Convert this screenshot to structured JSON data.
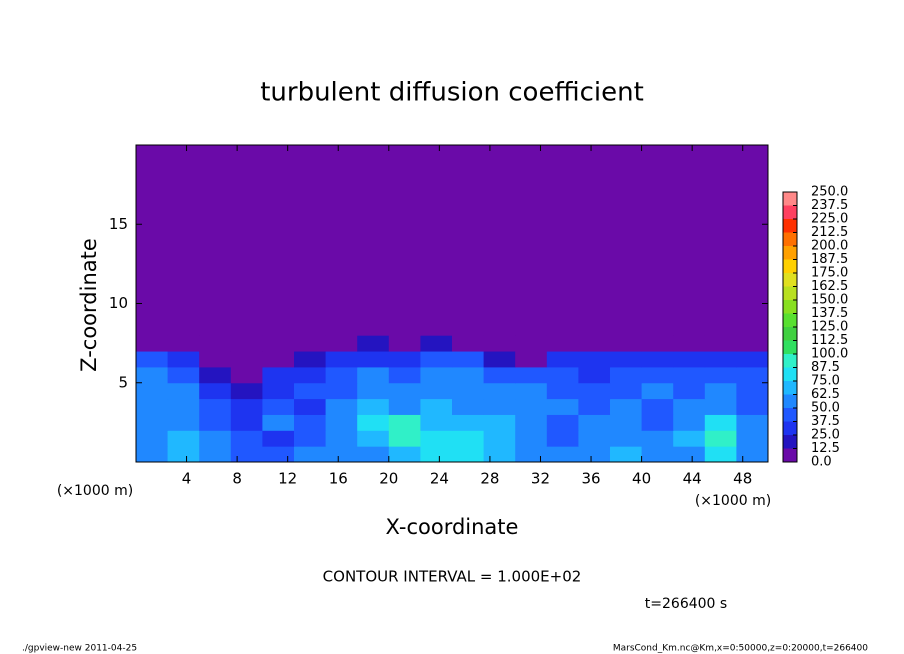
{
  "chart_data": {
    "type": "heatmap",
    "title": "turbulent diffusion coefficient",
    "x_label": "X-coordinate",
    "y_label": "Z-coordinate",
    "x_unit": "(×1000 m)",
    "y_unit": "(×1000 m)",
    "contour_note": "CONTOUR INTERVAL = 1.000E+02",
    "time_note": "t=266400 s",
    "footer_left": "./gpview-new  2011-04-25",
    "footer_right": "MarsCond_Km.nc@Km,x=0:50000,z=0:20000,t=266400",
    "xlim": [
      0,
      50
    ],
    "ylim": [
      0,
      20
    ],
    "xticks": [
      4,
      8,
      12,
      16,
      20,
      24,
      28,
      32,
      36,
      40,
      44,
      48
    ],
    "yticks": [
      5,
      10,
      15
    ],
    "x_edges": [
      0,
      2.5,
      5,
      7.5,
      10,
      12.5,
      15,
      17.5,
      20,
      22.5,
      25,
      27.5,
      30,
      32.5,
      35,
      37.5,
      40,
      42.5,
      45,
      47.5,
      50
    ],
    "z_edges": [
      0,
      1,
      2,
      3,
      4,
      5,
      6,
      7,
      8,
      20
    ],
    "values": [
      [
        60,
        70,
        55,
        45,
        40,
        50,
        55,
        60,
        70,
        75,
        80,
        70,
        60,
        50,
        60,
        70,
        55,
        60,
        80,
        60
      ],
      [
        55,
        65,
        50,
        40,
        35,
        45,
        60,
        70,
        90,
        75,
        75,
        70,
        55,
        45,
        55,
        60,
        50,
        65,
        90,
        60
      ],
      [
        55,
        60,
        45,
        30,
        60,
        40,
        55,
        75,
        90,
        70,
        65,
        65,
        50,
        45,
        50,
        55,
        45,
        55,
        85,
        50
      ],
      [
        60,
        55,
        40,
        25,
        40,
        35,
        50,
        70,
        60,
        65,
        60,
        60,
        55,
        50,
        45,
        50,
        45,
        50,
        60,
        45
      ],
      [
        55,
        50,
        30,
        20,
        35,
        40,
        45,
        60,
        55,
        60,
        55,
        60,
        50,
        45,
        40,
        45,
        50,
        45,
        50,
        40
      ],
      [
        50,
        45,
        20,
        10,
        25,
        35,
        40,
        50,
        45,
        50,
        55,
        45,
        40,
        40,
        35,
        40,
        45,
        40,
        45,
        40
      ],
      [
        45,
        30,
        5,
        5,
        10,
        20,
        35,
        30,
        35,
        45,
        40,
        15,
        10,
        30,
        25,
        25,
        35,
        30,
        30,
        30
      ],
      [
        0,
        0,
        0,
        0,
        0,
        0,
        0,
        20,
        0,
        20,
        0,
        0,
        0,
        0,
        0,
        0,
        0,
        0,
        0,
        0
      ],
      [
        0,
        0,
        0,
        0,
        0,
        0,
        0,
        0,
        0,
        0,
        0,
        0,
        0,
        0,
        0,
        0,
        0,
        0,
        0,
        0
      ]
    ],
    "colorbar_ticks": [
      {
        "value": 0,
        "label": "0.0"
      },
      {
        "value": 12.5,
        "label": "12.5"
      },
      {
        "value": 25,
        "label": "25.0"
      },
      {
        "value": 37.5,
        "label": "37.5"
      },
      {
        "value": 50,
        "label": "50.0"
      },
      {
        "value": 62.5,
        "label": "62.5"
      },
      {
        "value": 75,
        "label": "75.0"
      },
      {
        "value": 87.5,
        "label": "87.5"
      },
      {
        "value": 100,
        "label": "100.0"
      },
      {
        "value": 112.5,
        "label": "112.5"
      },
      {
        "value": 125,
        "label": "125.0"
      },
      {
        "value": 137.5,
        "label": "137.5"
      },
      {
        "value": 150,
        "label": "150.0"
      },
      {
        "value": 162.5,
        "label": "162.5"
      },
      {
        "value": 175,
        "label": "175.0"
      },
      {
        "value": 187.5,
        "label": "187.5"
      },
      {
        "value": 200,
        "label": "200.0"
      },
      {
        "value": 212.5,
        "label": "212.5"
      },
      {
        "value": 225,
        "label": "225.0"
      },
      {
        "value": 237.5,
        "label": "237.5"
      },
      {
        "value": 250,
        "label": "250.0"
      }
    ],
    "colors": [
      "#6a0aa8",
      "#2414c0",
      "#1e34f0",
      "#2058ff",
      "#2088ff",
      "#20b8ff",
      "#20e0f4",
      "#30f0c8",
      "#30e060",
      "#40d040",
      "#58e030",
      "#88e020",
      "#b8e020",
      "#e0e020",
      "#ffd000",
      "#ffa000",
      "#ff7000",
      "#ff3000",
      "#ff4060",
      "#ff8888"
    ]
  }
}
